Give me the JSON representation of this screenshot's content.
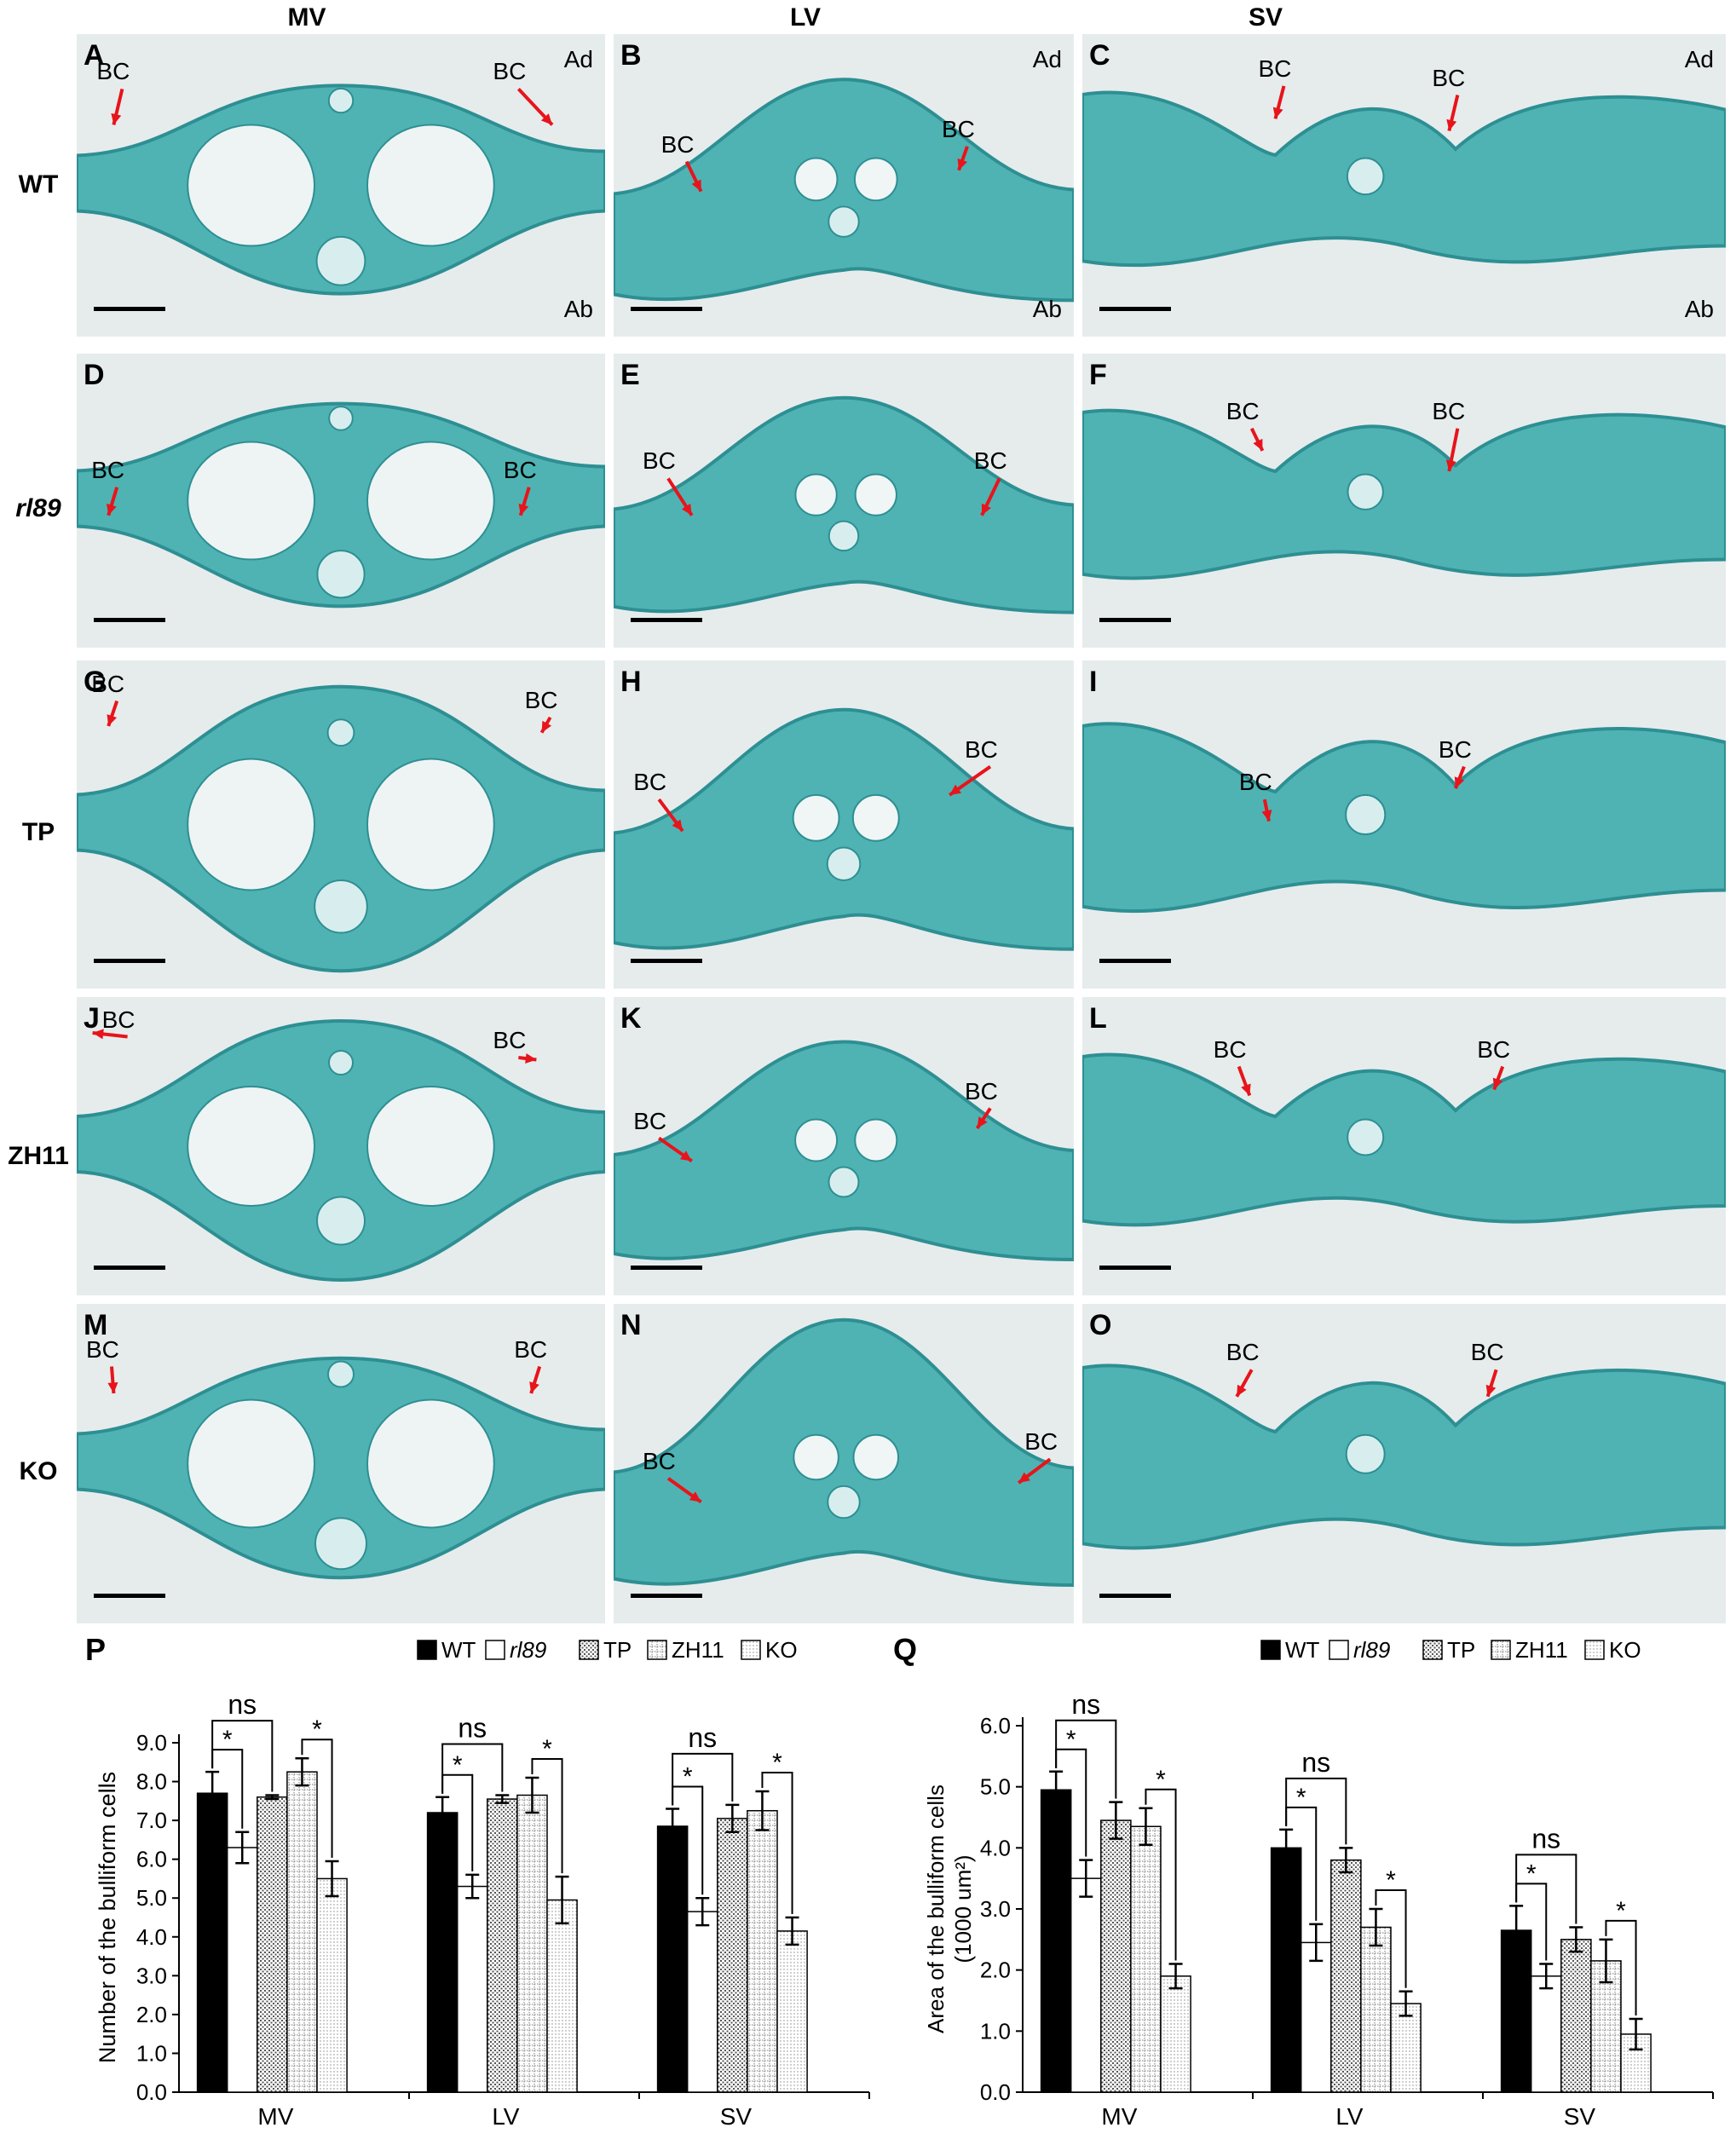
{
  "columns": [
    "MV",
    "LV",
    "SV"
  ],
  "rows": [
    {
      "genotype": "WT",
      "italic": false,
      "panels": [
        "A",
        "B",
        "C"
      ]
    },
    {
      "genotype": "rl89",
      "italic": true,
      "panels": [
        "D",
        "E",
        "F"
      ]
    },
    {
      "genotype": "TP",
      "italic": false,
      "panels": [
        "G",
        "H",
        "I"
      ]
    },
    {
      "genotype": "ZH11",
      "italic": false,
      "panels": [
        "J",
        "K",
        "L"
      ]
    },
    {
      "genotype": "KO",
      "italic": false,
      "panels": [
        "M",
        "N",
        "O"
      ]
    }
  ],
  "annotations": {
    "bc": "BC",
    "adaxial": "Ad",
    "abaxial": "Ab"
  },
  "colors": {
    "stain": "#4fb3b3",
    "stain_dark": "#2e8f93",
    "background": "#e6ecec",
    "arrow": "#e8141b"
  },
  "chart_data": [
    {
      "panel": "P",
      "type": "bar",
      "ylabel": "Number of the bulliform cells",
      "ylabel2": "",
      "categories": [
        "MV",
        "LV",
        "SV"
      ],
      "ylim": [
        0,
        9
      ],
      "yticks": [
        "0.0",
        "1.0",
        "2.0",
        "3.0",
        "4.0",
        "5.0",
        "6.0",
        "7.0",
        "8.0",
        "9.0"
      ],
      "series": [
        {
          "name": "WT",
          "values": [
            7.7,
            7.2,
            6.85
          ],
          "errors": [
            0.55,
            0.4,
            0.45
          ]
        },
        {
          "name": "rl89",
          "values": [
            6.3,
            5.3,
            4.65
          ],
          "errors": [
            0.4,
            0.3,
            0.35
          ]
        },
        {
          "name": "TP",
          "values": [
            7.6,
            7.55,
            7.05
          ],
          "errors": [
            0.05,
            0.1,
            0.35
          ]
        },
        {
          "name": "ZH11",
          "values": [
            8.25,
            7.65,
            7.25
          ],
          "errors": [
            0.35,
            0.45,
            0.5
          ]
        },
        {
          "name": "KO",
          "values": [
            5.5,
            4.95,
            4.15
          ],
          "errors": [
            0.45,
            0.6,
            0.35
          ]
        }
      ],
      "significance": [
        {
          "group": 0,
          "from": 0,
          "to": 1,
          "label": "*"
        },
        {
          "group": 0,
          "from": 0,
          "to": 2,
          "label": "ns"
        },
        {
          "group": 0,
          "from": 3,
          "to": 4,
          "label": "*"
        },
        {
          "group": 1,
          "from": 0,
          "to": 1,
          "label": "*"
        },
        {
          "group": 1,
          "from": 0,
          "to": 2,
          "label": "ns"
        },
        {
          "group": 1,
          "from": 3,
          "to": 4,
          "label": "*"
        },
        {
          "group": 2,
          "from": 0,
          "to": 1,
          "label": "*"
        },
        {
          "group": 2,
          "from": 0,
          "to": 2,
          "label": "ns"
        },
        {
          "group": 2,
          "from": 3,
          "to": 4,
          "label": "*"
        }
      ]
    },
    {
      "panel": "Q",
      "type": "bar",
      "ylabel": "Area of the bulliform cells",
      "ylabel2": "(1000 um²)",
      "categories": [
        "MV",
        "LV",
        "SV"
      ],
      "ylim": [
        0,
        6
      ],
      "yticks": [
        "0.0",
        "1.0",
        "2.0",
        "3.0",
        "4.0",
        "5.0",
        "6.0"
      ],
      "series": [
        {
          "name": "WT",
          "values": [
            4.95,
            4.0,
            2.65
          ],
          "errors": [
            0.3,
            0.3,
            0.4
          ]
        },
        {
          "name": "rl89",
          "values": [
            3.5,
            2.45,
            1.9
          ],
          "errors": [
            0.3,
            0.3,
            0.2
          ]
        },
        {
          "name": "TP",
          "values": [
            4.45,
            3.8,
            2.5
          ],
          "errors": [
            0.3,
            0.2,
            0.2
          ]
        },
        {
          "name": "ZH11",
          "values": [
            4.35,
            2.7,
            2.15
          ],
          "errors": [
            0.3,
            0.3,
            0.35
          ]
        },
        {
          "name": "KO",
          "values": [
            1.9,
            1.45,
            0.95
          ],
          "errors": [
            0.2,
            0.2,
            0.25
          ]
        }
      ],
      "significance": [
        {
          "group": 0,
          "from": 0,
          "to": 1,
          "label": "*"
        },
        {
          "group": 0,
          "from": 0,
          "to": 2,
          "label": "ns"
        },
        {
          "group": 0,
          "from": 3,
          "to": 4,
          "label": "*"
        },
        {
          "group": 1,
          "from": 0,
          "to": 1,
          "label": "*"
        },
        {
          "group": 1,
          "from": 0,
          "to": 2,
          "label": "ns"
        },
        {
          "group": 1,
          "from": 3,
          "to": 4,
          "label": "*"
        },
        {
          "group": 2,
          "from": 0,
          "to": 1,
          "label": "*"
        },
        {
          "group": 2,
          "from": 0,
          "to": 2,
          "label": "ns"
        },
        {
          "group": 2,
          "from": 3,
          "to": 4,
          "label": "*"
        }
      ]
    }
  ]
}
